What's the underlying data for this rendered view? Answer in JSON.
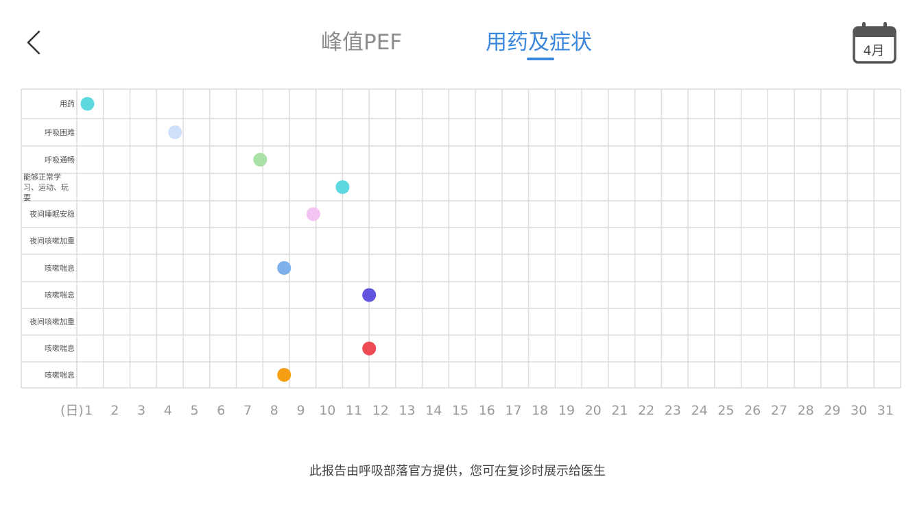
{
  "header": {
    "back_icon": "chevron-left-icon",
    "tabs": [
      {
        "label": "峰值PEF",
        "active": false
      },
      {
        "label": "用药及症状",
        "active": true
      }
    ],
    "calendar": {
      "icon": "calendar-icon",
      "month_label": "4月"
    }
  },
  "colors": {
    "accent": "#3a87dd",
    "inactive_tab": "#8c8c8c",
    "grid_line": "#dcdcdc"
  },
  "chart_data": {
    "type": "scatter",
    "x_unit_label": "(日)",
    "days": [
      1,
      2,
      3,
      4,
      5,
      6,
      7,
      8,
      9,
      10,
      11,
      12,
      13,
      14,
      15,
      16,
      17,
      18,
      19,
      20,
      21,
      22,
      23,
      24,
      25,
      26,
      27,
      28,
      29,
      30,
      31
    ],
    "rows": [
      {
        "label": "用药",
        "markers": [
          {
            "day": 1,
            "color": "#5ed8df"
          }
        ]
      },
      {
        "label": "呼吸困难",
        "markers": [
          {
            "day": 4.3,
            "color": "#cfe0fb"
          }
        ]
      },
      {
        "label": "呼吸通畅",
        "markers": [
          {
            "day": 7.5,
            "color": "#a9e0a7"
          }
        ]
      },
      {
        "label": "能够正常学习、运动、玩耍",
        "markers": [
          {
            "day": 10.6,
            "color": "#5ed8df"
          }
        ]
      },
      {
        "label": "夜间睡眠安稳",
        "markers": [
          {
            "day": 9.5,
            "color": "#f3c3f1"
          }
        ]
      },
      {
        "label": "夜间咳嗽加重",
        "markers": []
      },
      {
        "label": "咳嗽喘息",
        "markers": [
          {
            "day": 8.4,
            "color": "#7eb0ec"
          }
        ]
      },
      {
        "label": "咳嗽喘息",
        "markers": [
          {
            "day": 11.6,
            "color": "#6254df"
          }
        ]
      },
      {
        "label": "夜间咳嗽加重",
        "markers": []
      },
      {
        "label": "咳嗽喘息",
        "markers": [
          {
            "day": 11.6,
            "color": "#ef4b55"
          }
        ]
      },
      {
        "label": "咳嗽喘息",
        "markers": [
          {
            "day": 8.4,
            "color": "#f79f12"
          }
        ]
      }
    ]
  },
  "footer": {
    "text": "此报告由呼吸部落官方提供，您可在复诊时展示给医生"
  }
}
